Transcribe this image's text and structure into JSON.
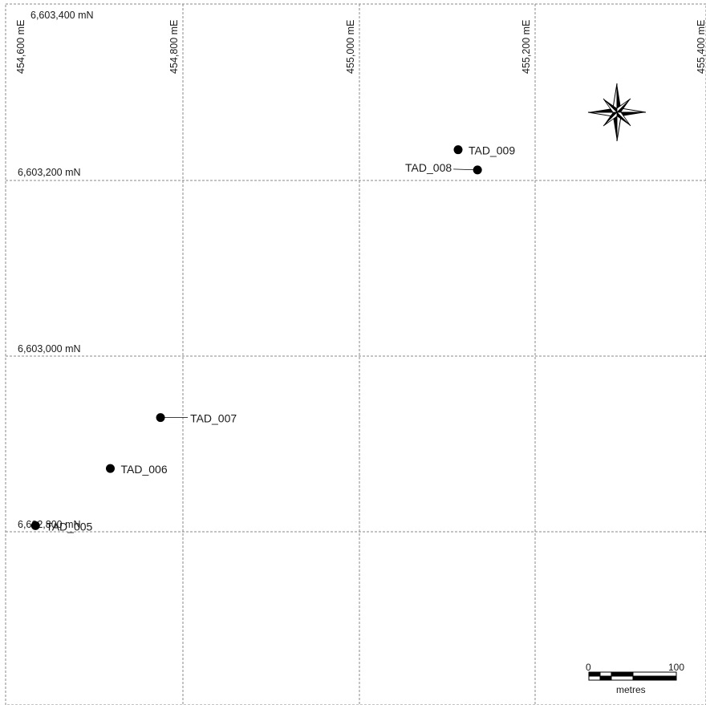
{
  "grid": {
    "eastings": [
      {
        "value": 454600,
        "label": "454,600 mE"
      },
      {
        "value": 454800,
        "label": "454,800 mE"
      },
      {
        "value": 455000,
        "label": "455,000 mE"
      },
      {
        "value": 455200,
        "label": "455,200 mE"
      },
      {
        "value": 455400,
        "label": "455,400 mE"
      }
    ],
    "northings": [
      {
        "value": 6603400,
        "label": "6,603,400 mN"
      },
      {
        "value": 6603200,
        "label": "6,603,200 mN"
      },
      {
        "value": 6603000,
        "label": "6,603,000 mN"
      },
      {
        "value": 6602800,
        "label": "6,602,800 mN"
      }
    ]
  },
  "drillholes": [
    {
      "id": "TAD_005",
      "easting": 454633,
      "northing": 6602807
    },
    {
      "id": "TAD_006",
      "easting": 454718,
      "northing": 6602872
    },
    {
      "id": "TAD_007",
      "easting": 454775,
      "northing": 6602930
    },
    {
      "id": "TAD_008",
      "easting": 455135,
      "northing": 6603212
    },
    {
      "id": "TAD_009",
      "easting": 455113,
      "northing": 6603235
    }
  ],
  "scale_bar": {
    "start_label": "0",
    "end_label": "100",
    "unit_label": "metres",
    "length_m": 100
  },
  "north_arrow": {
    "icon": "compass-rose-icon"
  },
  "colors": {
    "grid": "#8a8a8a",
    "symbol": "#000000",
    "text": "#1a1a1a"
  }
}
